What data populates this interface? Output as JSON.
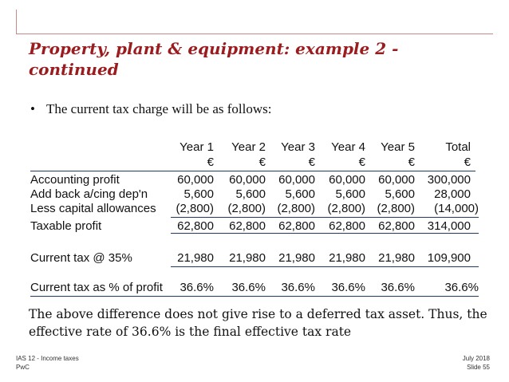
{
  "title": "Property, plant & equipment: example 2 - continued",
  "bullet": "The current tax charge will be as follows:",
  "table": {
    "columns": [
      {
        "year": "Year 1",
        "unit": "€"
      },
      {
        "year": "Year 2",
        "unit": "€"
      },
      {
        "year": "Year 3",
        "unit": "€"
      },
      {
        "year": "Year 4",
        "unit": "€"
      },
      {
        "year": "Year 5",
        "unit": "€"
      },
      {
        "year": "Total",
        "unit": "€"
      }
    ],
    "rows": [
      {
        "label": "Accounting profit",
        "values": [
          "60,000",
          "60,000",
          "60,000",
          "60,000",
          "60,000",
          "300,000"
        ]
      },
      {
        "label": "Add back a/cing dep'n",
        "values": [
          "5,600",
          "5,600",
          "5,600",
          "5,600",
          "5,600",
          "28,000"
        ]
      },
      {
        "label": "Less capital allowances",
        "values": [
          "(2,800)",
          "(2,800)",
          "(2,800)",
          "(2,800)",
          "(2,800)",
          "(14,000)"
        ]
      },
      {
        "label": "Taxable profit",
        "values": [
          "62,800",
          "62,800",
          "62,800",
          "62,800",
          "62,800",
          "314,000"
        ]
      },
      {
        "label": "Current tax @ 35%",
        "values": [
          "21,980",
          "21,980",
          "21,980",
          "21,980",
          "21,980",
          "109,900"
        ]
      },
      {
        "label": "Current tax as % of profit",
        "values": [
          "36.6%",
          "36.6%",
          "36.6%",
          "36.6%",
          "36.6%",
          "36.6%"
        ]
      }
    ]
  },
  "note": "The above difference does not give rise to a deferred tax asset.  Thus, the effective rate of 36.6% is the final effective tax rate",
  "footer": {
    "left_top": "IAS 12 - Income taxes",
    "left_bottom": "PwC",
    "right_top": "July 2018",
    "right_bottom": "Slide 55"
  }
}
